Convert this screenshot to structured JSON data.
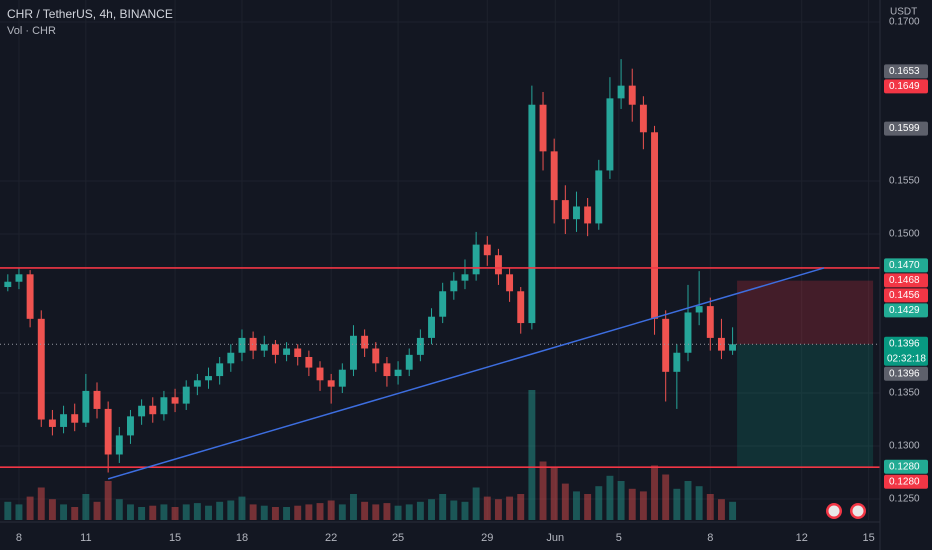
{
  "chart_data": {
    "type": "candlestick",
    "title": "CHR / TetherUS, 4h, BINANCE",
    "subtitle": "Vol · CHR",
    "currency": "USDT",
    "x": [
      -0.5,
      0,
      0.5,
      1,
      1.5,
      2,
      2.5,
      3,
      3.5,
      4,
      4.5,
      5,
      5.5,
      6,
      6.5,
      7,
      7.5,
      8,
      8.5,
      9,
      9.5,
      10,
      10.5,
      11,
      11.5,
      12,
      12.5,
      13,
      13.5,
      14,
      14.5,
      15,
      15.5,
      16,
      16.5,
      17,
      17.5,
      18,
      18.5,
      19,
      19.5,
      20,
      20.5,
      21,
      21.5,
      22,
      22.5,
      23,
      23.5,
      24,
      24.5,
      25,
      25.5,
      26,
      26.5,
      27,
      27.5,
      28,
      28.5,
      29,
      29.5,
      30,
      30.5,
      31,
      31.5,
      32
    ],
    "open": [
      0.145,
      0.1455,
      0.1462,
      0.142,
      0.1325,
      0.1318,
      0.133,
      0.1322,
      0.1352,
      0.1335,
      0.1292,
      0.131,
      0.1328,
      0.1338,
      0.133,
      0.1346,
      0.134,
      0.1356,
      0.1362,
      0.1366,
      0.1378,
      0.1388,
      0.1402,
      0.139,
      0.1396,
      0.1386,
      0.1392,
      0.1384,
      0.1374,
      0.1362,
      0.1356,
      0.1372,
      0.1404,
      0.1392,
      0.1378,
      0.1366,
      0.1372,
      0.1386,
      0.1402,
      0.1422,
      0.1446,
      0.1456,
      0.1462,
      0.149,
      0.148,
      0.1462,
      0.1446,
      0.1416,
      0.1622,
      0.1578,
      0.1532,
      0.1514,
      0.1526,
      0.151,
      0.156,
      0.1628,
      0.164,
      0.1622,
      0.1596,
      0.142,
      0.137,
      0.1388,
      0.1426,
      0.1432,
      0.1402,
      0.139
    ],
    "high": [
      0.1462,
      0.1468,
      0.1466,
      0.1428,
      0.1334,
      0.1338,
      0.134,
      0.1368,
      0.136,
      0.1342,
      0.1318,
      0.1334,
      0.1344,
      0.1346,
      0.1352,
      0.1354,
      0.1362,
      0.1368,
      0.1374,
      0.1384,
      0.1396,
      0.141,
      0.1408,
      0.1404,
      0.14,
      0.1398,
      0.1396,
      0.139,
      0.138,
      0.1368,
      0.1378,
      0.1414,
      0.141,
      0.1398,
      0.1384,
      0.138,
      0.1392,
      0.141,
      0.143,
      0.1454,
      0.1464,
      0.1476,
      0.1502,
      0.1498,
      0.1486,
      0.1468,
      0.145,
      0.164,
      0.1634,
      0.159,
      0.1546,
      0.154,
      0.1534,
      0.157,
      0.1648,
      0.1665,
      0.1656,
      0.163,
      0.1602,
      0.1428,
      0.1396,
      0.1452,
      0.1465,
      0.144,
      0.142,
      0.1412
    ],
    "low": [
      0.1446,
      0.1448,
      0.1412,
      0.1318,
      0.131,
      0.1312,
      0.1314,
      0.1318,
      0.1326,
      0.1275,
      0.1284,
      0.1302,
      0.132,
      0.1322,
      0.1324,
      0.1332,
      0.1334,
      0.1348,
      0.1354,
      0.1358,
      0.137,
      0.138,
      0.1382,
      0.1384,
      0.1378,
      0.138,
      0.1376,
      0.1366,
      0.1352,
      0.134,
      0.135,
      0.1366,
      0.1384,
      0.137,
      0.1356,
      0.1358,
      0.1366,
      0.138,
      0.1396,
      0.1416,
      0.1438,
      0.1448,
      0.1456,
      0.147,
      0.1452,
      0.1436,
      0.1406,
      0.141,
      0.156,
      0.151,
      0.15,
      0.1502,
      0.1498,
      0.1504,
      0.1552,
      0.1618,
      0.1606,
      0.158,
      0.1405,
      0.1342,
      0.1335,
      0.138,
      0.1414,
      0.139,
      0.1382,
      0.1386
    ],
    "close": [
      0.1455,
      0.1462,
      0.142,
      0.1325,
      0.1318,
      0.133,
      0.1322,
      0.1352,
      0.1335,
      0.1292,
      0.131,
      0.1328,
      0.1338,
      0.133,
      0.1346,
      0.134,
      0.1356,
      0.1362,
      0.1366,
      0.1378,
      0.1388,
      0.1402,
      0.139,
      0.1396,
      0.1386,
      0.1392,
      0.1384,
      0.1374,
      0.1362,
      0.1356,
      0.1372,
      0.1404,
      0.1392,
      0.1378,
      0.1366,
      0.1372,
      0.1386,
      0.1402,
      0.1422,
      0.1446,
      0.1456,
      0.1462,
      0.149,
      0.148,
      0.1462,
      0.1446,
      0.1416,
      0.1622,
      0.1578,
      0.1532,
      0.1514,
      0.1526,
      0.151,
      0.156,
      0.1628,
      0.164,
      0.1622,
      0.1596,
      0.142,
      0.137,
      0.1388,
      0.1426,
      0.1432,
      0.1402,
      0.139,
      0.1396
    ],
    "volume": [
      14,
      12,
      18,
      25,
      16,
      12,
      10,
      20,
      14,
      30,
      16,
      12,
      10,
      11,
      12,
      10,
      12,
      13,
      11,
      14,
      15,
      18,
      12,
      11,
      10,
      10,
      11,
      12,
      13,
      15,
      12,
      20,
      14,
      12,
      13,
      11,
      12,
      14,
      16,
      20,
      15,
      14,
      25,
      18,
      16,
      18,
      20,
      100,
      45,
      40,
      28,
      22,
      20,
      26,
      34,
      30,
      24,
      22,
      42,
      35,
      24,
      30,
      26,
      20,
      16,
      14
    ],
    "up_color": "#26a69a",
    "down_color": "#ef5350",
    "xlim": [
      -0.85,
      38.61
    ],
    "xticks": [
      {
        "value": 0,
        "label": "8"
      },
      {
        "value": 3,
        "label": "11"
      },
      {
        "value": 7,
        "label": "15"
      },
      {
        "value": 10,
        "label": "18"
      },
      {
        "value": 14,
        "label": "22"
      },
      {
        "value": 17,
        "label": "25"
      },
      {
        "value": 21,
        "label": "29"
      },
      {
        "value": 24.05,
        "label": "Jun"
      },
      {
        "value": 26.9,
        "label": "5"
      },
      {
        "value": 31,
        "label": "8"
      },
      {
        "value": 35.1,
        "label": "12"
      },
      {
        "value": 38.1,
        "label": "15"
      }
    ],
    "ylim": [
      0.12302,
      0.17208
    ],
    "yticks": [
      {
        "value": 0.125,
        "label": "0.1250"
      },
      {
        "value": 0.13,
        "label": "0.1300"
      },
      {
        "value": 0.135,
        "label": "0.1350"
      },
      {
        "value": 0.15,
        "label": "0.1500"
      },
      {
        "value": 0.155,
        "label": "0.1550"
      },
      {
        "value": 0.17,
        "label": "0.1700"
      }
    ],
    "grid": true,
    "hlines": [
      {
        "value": 0.1468,
        "color": "#f23645"
      },
      {
        "value": 0.128,
        "color": "#f23645"
      }
    ],
    "trendline": {
      "x": [
        4.0,
        36.1
      ],
      "y": [
        0.1269,
        0.1468
      ],
      "color": "#3d6ee0"
    },
    "current_price": 0.1396,
    "position": {
      "x": [
        32.2,
        38.3
      ],
      "stop": 0.1456,
      "entry": 0.1396,
      "target": 0.128
    },
    "price_labels": [
      {
        "value": 0.1653,
        "label": "0.1653",
        "color": "#5d606b"
      },
      {
        "value": 0.1649,
        "label": "0.1649",
        "color": "#f23645"
      },
      {
        "value": 0.1599,
        "label": "0.1599",
        "color": "#5d606b"
      },
      {
        "value": 0.147,
        "label": "0.1470",
        "color": "#22ab94"
      },
      {
        "value": 0.1468,
        "label": "0.1468",
        "color": "#f23645"
      },
      {
        "value": 0.1456,
        "label": "0.1456",
        "color": "#f23645"
      },
      {
        "value": 0.1429,
        "label": "0.1429",
        "color": "#22ab94"
      },
      {
        "value": 0.1396,
        "label": "0.1396",
        "color": "#089981",
        "countdown": "02:32:18"
      },
      {
        "value": 0.1396,
        "label": "0.1396",
        "color": "#5d606b"
      },
      {
        "value": 0.128,
        "label": "0.1280",
        "color": "#22ab94"
      },
      {
        "value": 0.128,
        "label": "0.1280",
        "color": "#f23645"
      }
    ]
  }
}
